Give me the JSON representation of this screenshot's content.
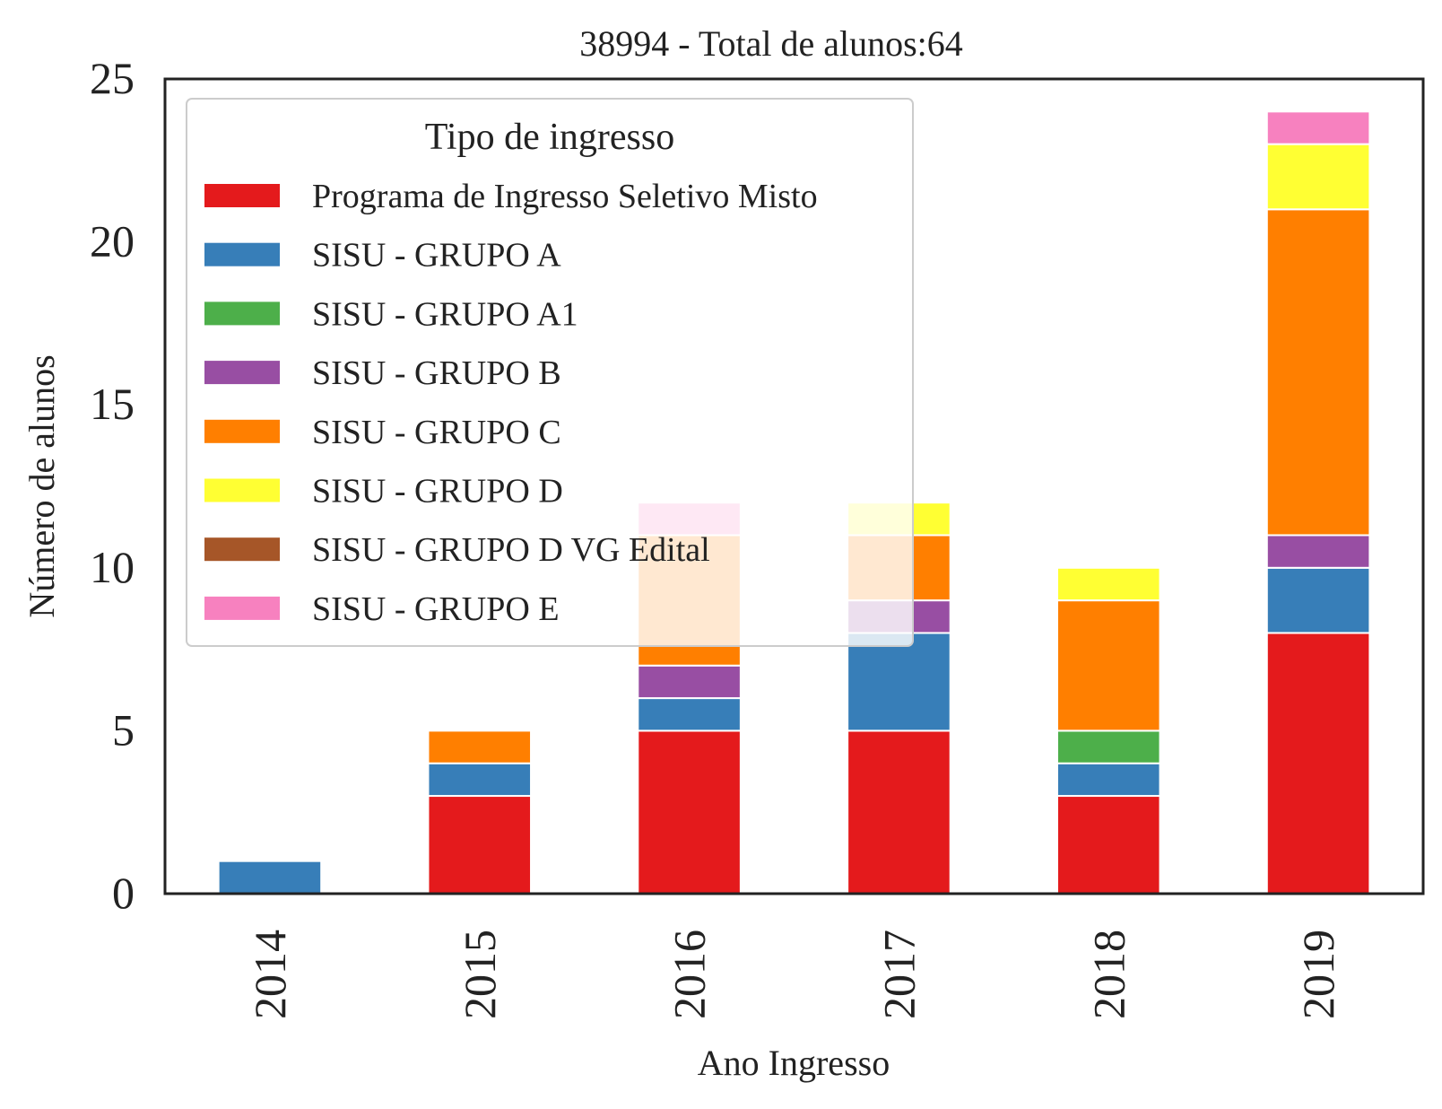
{
  "chart_data": {
    "type": "bar",
    "stacked": true,
    "title": "38994 - Total de alunos:64",
    "xlabel": "Ano Ingresso",
    "ylabel": "Número de alunos",
    "ylim": [
      0,
      25
    ],
    "yticks": [
      "0",
      "5",
      "10",
      "15",
      "20",
      "25"
    ],
    "grid": false,
    "legend": {
      "title": "Tipo de ingresso",
      "placement": "top-left"
    },
    "categories": [
      "2014",
      "2015",
      "2016",
      "2017",
      "2018",
      "2019"
    ],
    "series": [
      {
        "name": "Programa de Ingresso Seletivo Misto",
        "color": "#e41a1c",
        "values": [
          0,
          3,
          5,
          5,
          3,
          8
        ]
      },
      {
        "name": "SISU - GRUPO A",
        "color": "#377eb8",
        "values": [
          1,
          1,
          1,
          3,
          1,
          2
        ]
      },
      {
        "name": "SISU - GRUPO A1",
        "color": "#4daf4a",
        "values": [
          0,
          0,
          0,
          0,
          1,
          0
        ]
      },
      {
        "name": "SISU - GRUPO B",
        "color": "#984ea3",
        "values": [
          0,
          0,
          1,
          1,
          0,
          1
        ]
      },
      {
        "name": "SISU - GRUPO C",
        "color": "#ff7f00",
        "values": [
          0,
          1,
          4,
          2,
          4,
          10
        ]
      },
      {
        "name": "SISU - GRUPO D",
        "color": "#ffff33",
        "values": [
          0,
          0,
          0,
          1,
          1,
          2
        ]
      },
      {
        "name": "SISU - GRUPO D VG Edital",
        "color": "#a65628",
        "values": [
          0,
          0,
          0,
          0,
          0,
          0
        ]
      },
      {
        "name": "SISU - GRUPO E",
        "color": "#f781bf",
        "values": [
          0,
          0,
          1,
          0,
          0,
          1
        ]
      }
    ]
  }
}
